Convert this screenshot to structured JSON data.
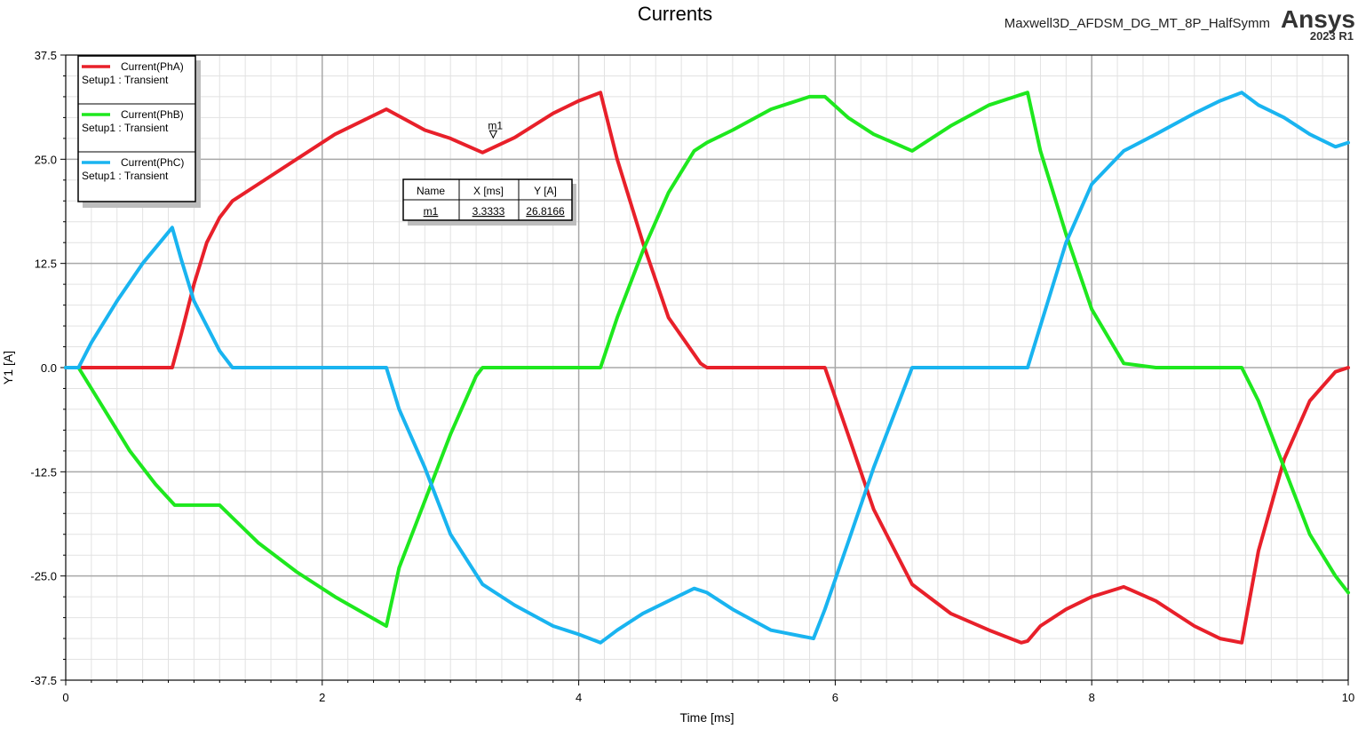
{
  "project_name": "Maxwell3D_AFDSM_DG_MT_8P_HalfSymm",
  "brand": {
    "name": "Ansys",
    "version": "2023 R1"
  },
  "chart_data": {
    "type": "line",
    "title": "Currents",
    "xlabel": "Time [ms]",
    "ylabel": "Y1 [A]",
    "xlim": [
      0,
      10
    ],
    "ylim": [
      -37.5,
      37.5
    ],
    "xticks": [
      0,
      2,
      4,
      6,
      8,
      10
    ],
    "yticks": [
      -37.5,
      -25.0,
      -12.5,
      0.0,
      12.5,
      25.0,
      37.5
    ],
    "x_tick_labels": [
      "0",
      "2",
      "4",
      "6",
      "8",
      "10"
    ],
    "y_tick_labels": [
      "-37.5",
      "-25.0",
      "-12.5",
      "0.0",
      "12.5",
      "25.0",
      "37.5"
    ],
    "grid": true,
    "legend_position": "top-left",
    "series": [
      {
        "name": "Current(PhA)",
        "setup": "Setup1 : Transient",
        "color": "#e8202a",
        "x": [
          0,
          0.83,
          0.9,
          1.0,
          1.1,
          1.2,
          1.3,
          1.5,
          1.8,
          2.1,
          2.5,
          2.8,
          3.0,
          3.25,
          3.5,
          3.8,
          4.0,
          4.17,
          4.3,
          4.5,
          4.7,
          4.95,
          5.0,
          5.2,
          5.5,
          5.8,
          5.92,
          6.1,
          6.3,
          6.6,
          6.9,
          7.2,
          7.45,
          7.5,
          7.6,
          7.8,
          8.0,
          8.25,
          8.5,
          8.8,
          9.0,
          9.17,
          9.3,
          9.5,
          9.7,
          9.9,
          10.0
        ],
        "y": [
          0,
          0,
          4,
          10,
          15,
          18,
          20,
          22,
          25,
          28,
          31,
          28.5,
          27.5,
          25.8,
          27.6,
          30.5,
          32,
          33,
          25,
          15,
          6,
          0.5,
          0,
          0,
          0,
          0,
          0,
          -8,
          -17,
          -26,
          -29.5,
          -31.5,
          -33,
          -32.8,
          -31,
          -29,
          -27.5,
          -26.3,
          -28,
          -31,
          -32.5,
          -33,
          -22,
          -11,
          -4,
          -0.5,
          0
        ]
      },
      {
        "name": "Current(PhB)",
        "setup": "Setup1 : Transient",
        "color": "#1ee81e",
        "x": [
          0,
          0.1,
          0.3,
          0.5,
          0.7,
          0.85,
          1.0,
          1.2,
          1.3,
          1.5,
          1.8,
          2.1,
          2.5,
          2.6,
          2.8,
          3.0,
          3.2,
          3.25,
          3.5,
          4.0,
          4.17,
          4.3,
          4.5,
          4.7,
          4.9,
          5.0,
          5.2,
          5.5,
          5.8,
          5.92,
          6.1,
          6.3,
          6.6,
          6.9,
          7.2,
          7.4,
          7.5,
          7.6,
          7.8,
          8.0,
          8.25,
          8.5,
          8.8,
          9.0,
          9.17,
          9.3,
          9.5,
          9.7,
          9.9,
          10.0
        ],
        "y": [
          0,
          0,
          -5,
          -10,
          -14,
          -16.5,
          -16.5,
          -16.5,
          -18,
          -21,
          -24.5,
          -27.5,
          -31,
          -24,
          -16,
          -8,
          -1,
          0,
          0,
          0,
          0,
          6,
          14,
          21,
          26,
          27,
          28.5,
          31,
          32.5,
          32.5,
          30,
          28,
          26,
          29,
          31.5,
          32.5,
          33,
          26,
          16,
          7,
          0.5,
          0,
          0,
          0,
          0,
          -4,
          -12,
          -20,
          -25,
          -27
        ]
      },
      {
        "name": "Current(PhC)",
        "setup": "Setup1 : Transient",
        "color": "#19b4f0",
        "x": [
          0,
          0.1,
          0.2,
          0.4,
          0.6,
          0.83,
          0.9,
          1.0,
          1.2,
          1.3,
          1.5,
          2.0,
          2.5,
          2.6,
          2.8,
          3.0,
          3.25,
          3.5,
          3.8,
          4.0,
          4.17,
          4.3,
          4.5,
          4.9,
          5.0,
          5.2,
          5.5,
          5.83,
          5.92,
          6.1,
          6.3,
          6.5,
          6.6,
          6.9,
          7.5,
          7.6,
          7.8,
          8.0,
          8.25,
          8.5,
          8.8,
          9.0,
          9.17,
          9.3,
          9.5,
          9.7,
          9.9,
          10.0
        ],
        "y": [
          0,
          0,
          3,
          8,
          12.5,
          16.8,
          13,
          8,
          2,
          0,
          0,
          0,
          0,
          -5,
          -12,
          -20,
          -26,
          -28.5,
          -31,
          -32,
          -33,
          -31.5,
          -29.5,
          -26.5,
          -27,
          -29,
          -31.5,
          -32.5,
          -29,
          -21,
          -12,
          -4,
          0,
          0,
          0,
          5,
          15,
          22,
          26,
          28,
          30.5,
          32,
          33,
          31.5,
          30,
          28,
          26.5,
          27
        ]
      }
    ],
    "marker": {
      "name": "m1",
      "x": 3.3333,
      "y": 26.8166
    },
    "marker_table": {
      "headers": [
        "Name",
        "X [ms]",
        "Y [A]"
      ],
      "rows": [
        [
          "m1",
          "3.3333",
          "26.8166"
        ]
      ]
    }
  }
}
